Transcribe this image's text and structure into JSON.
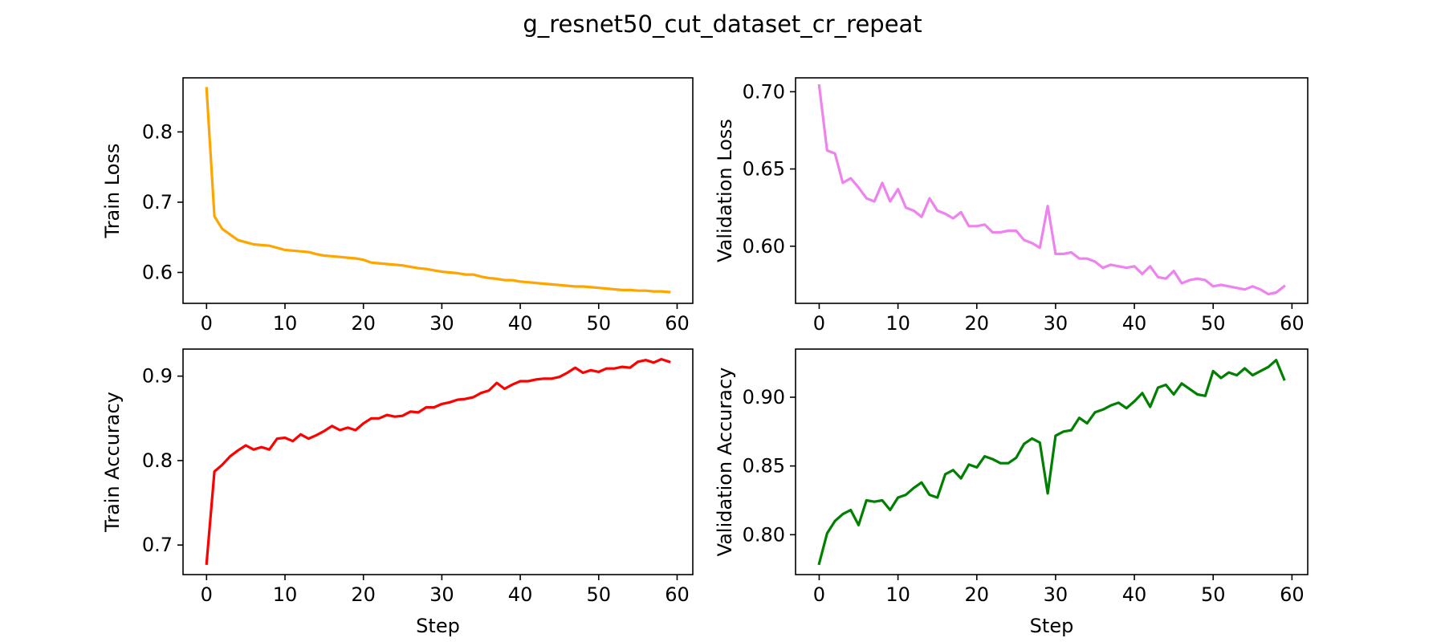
{
  "figure_title": "g_resnet50_cut_dataset_cr_repeat",
  "chart_data": [
    {
      "type": "line",
      "ylabel": "Train Loss",
      "xlabel": "",
      "color": "#ffa500",
      "xlim": [
        -3,
        62
      ],
      "ylim": [
        0.556,
        0.877
      ],
      "xticks": [
        0,
        10,
        20,
        30,
        40,
        50,
        60
      ],
      "yticks": [
        0.6,
        0.7,
        0.8
      ],
      "ytick_labels": [
        "0.6",
        "0.7",
        "0.8"
      ],
      "x_start": 0,
      "values": [
        0.862,
        0.68,
        0.662,
        0.654,
        0.646,
        0.643,
        0.64,
        0.639,
        0.638,
        0.635,
        0.632,
        0.631,
        0.63,
        0.629,
        0.626,
        0.624,
        0.623,
        0.622,
        0.621,
        0.62,
        0.618,
        0.614,
        0.613,
        0.612,
        0.611,
        0.61,
        0.608,
        0.606,
        0.605,
        0.603,
        0.601,
        0.6,
        0.599,
        0.597,
        0.597,
        0.594,
        0.592,
        0.591,
        0.589,
        0.589,
        0.587,
        0.586,
        0.585,
        0.584,
        0.583,
        0.582,
        0.581,
        0.58,
        0.58,
        0.579,
        0.578,
        0.577,
        0.576,
        0.575,
        0.575,
        0.574,
        0.574,
        0.573,
        0.573,
        0.572
      ]
    },
    {
      "type": "line",
      "ylabel": "Validation Loss",
      "xlabel": "",
      "color": "#ee82ee",
      "xlim": [
        -3,
        62
      ],
      "ylim": [
        0.563,
        0.709
      ],
      "xticks": [
        0,
        10,
        20,
        30,
        40,
        50,
        60
      ],
      "yticks": [
        0.6,
        0.65,
        0.7
      ],
      "ytick_labels": [
        "0.60",
        "0.65",
        "0.70"
      ],
      "x_start": 0,
      "values": [
        0.704,
        0.662,
        0.66,
        0.641,
        0.644,
        0.638,
        0.631,
        0.629,
        0.641,
        0.629,
        0.637,
        0.625,
        0.623,
        0.619,
        0.631,
        0.623,
        0.621,
        0.618,
        0.622,
        0.613,
        0.613,
        0.614,
        0.609,
        0.609,
        0.61,
        0.61,
        0.604,
        0.602,
        0.599,
        0.626,
        0.595,
        0.595,
        0.596,
        0.592,
        0.592,
        0.59,
        0.586,
        0.588,
        0.587,
        0.586,
        0.587,
        0.582,
        0.587,
        0.58,
        0.579,
        0.584,
        0.576,
        0.578,
        0.579,
        0.578,
        0.574,
        0.575,
        0.574,
        0.573,
        0.572,
        0.574,
        0.572,
        0.569,
        0.57,
        0.574
      ]
    },
    {
      "type": "line",
      "ylabel": "Train Accuracy",
      "xlabel": "Step",
      "color": "#ff0000",
      "xlim": [
        -3,
        62
      ],
      "ylim": [
        0.665,
        0.932
      ],
      "xticks": [
        0,
        10,
        20,
        30,
        40,
        50,
        60
      ],
      "yticks": [
        0.7,
        0.8,
        0.9
      ],
      "ytick_labels": [
        "0.7",
        "0.8",
        "0.9"
      ],
      "x_start": 0,
      "values": [
        0.678,
        0.787,
        0.795,
        0.805,
        0.812,
        0.818,
        0.813,
        0.816,
        0.813,
        0.826,
        0.827,
        0.823,
        0.831,
        0.826,
        0.83,
        0.835,
        0.841,
        0.836,
        0.839,
        0.836,
        0.844,
        0.85,
        0.85,
        0.854,
        0.852,
        0.853,
        0.858,
        0.857,
        0.863,
        0.863,
        0.867,
        0.869,
        0.872,
        0.873,
        0.875,
        0.88,
        0.883,
        0.892,
        0.885,
        0.89,
        0.894,
        0.894,
        0.896,
        0.897,
        0.897,
        0.899,
        0.904,
        0.91,
        0.904,
        0.907,
        0.905,
        0.909,
        0.909,
        0.911,
        0.91,
        0.917,
        0.919,
        0.916,
        0.92,
        0.917
      ]
    },
    {
      "type": "line",
      "ylabel": "Validation Accuracy",
      "xlabel": "Step",
      "color": "#008000",
      "xlim": [
        -3,
        62
      ],
      "ylim": [
        0.771,
        0.935
      ],
      "xticks": [
        0,
        10,
        20,
        30,
        40,
        50,
        60
      ],
      "yticks": [
        0.8,
        0.85,
        0.9
      ],
      "ytick_labels": [
        "0.80",
        "0.85",
        "0.90"
      ],
      "x_start": 0,
      "values": [
        0.779,
        0.801,
        0.81,
        0.815,
        0.818,
        0.807,
        0.825,
        0.824,
        0.825,
        0.818,
        0.827,
        0.829,
        0.834,
        0.838,
        0.829,
        0.827,
        0.844,
        0.847,
        0.841,
        0.851,
        0.849,
        0.857,
        0.855,
        0.852,
        0.852,
        0.856,
        0.866,
        0.87,
        0.867,
        0.83,
        0.872,
        0.875,
        0.876,
        0.885,
        0.881,
        0.889,
        0.891,
        0.894,
        0.896,
        0.892,
        0.897,
        0.903,
        0.893,
        0.907,
        0.909,
        0.902,
        0.91,
        0.906,
        0.902,
        0.901,
        0.919,
        0.914,
        0.918,
        0.916,
        0.921,
        0.916,
        0.919,
        0.922,
        0.927,
        0.913
      ]
    }
  ]
}
